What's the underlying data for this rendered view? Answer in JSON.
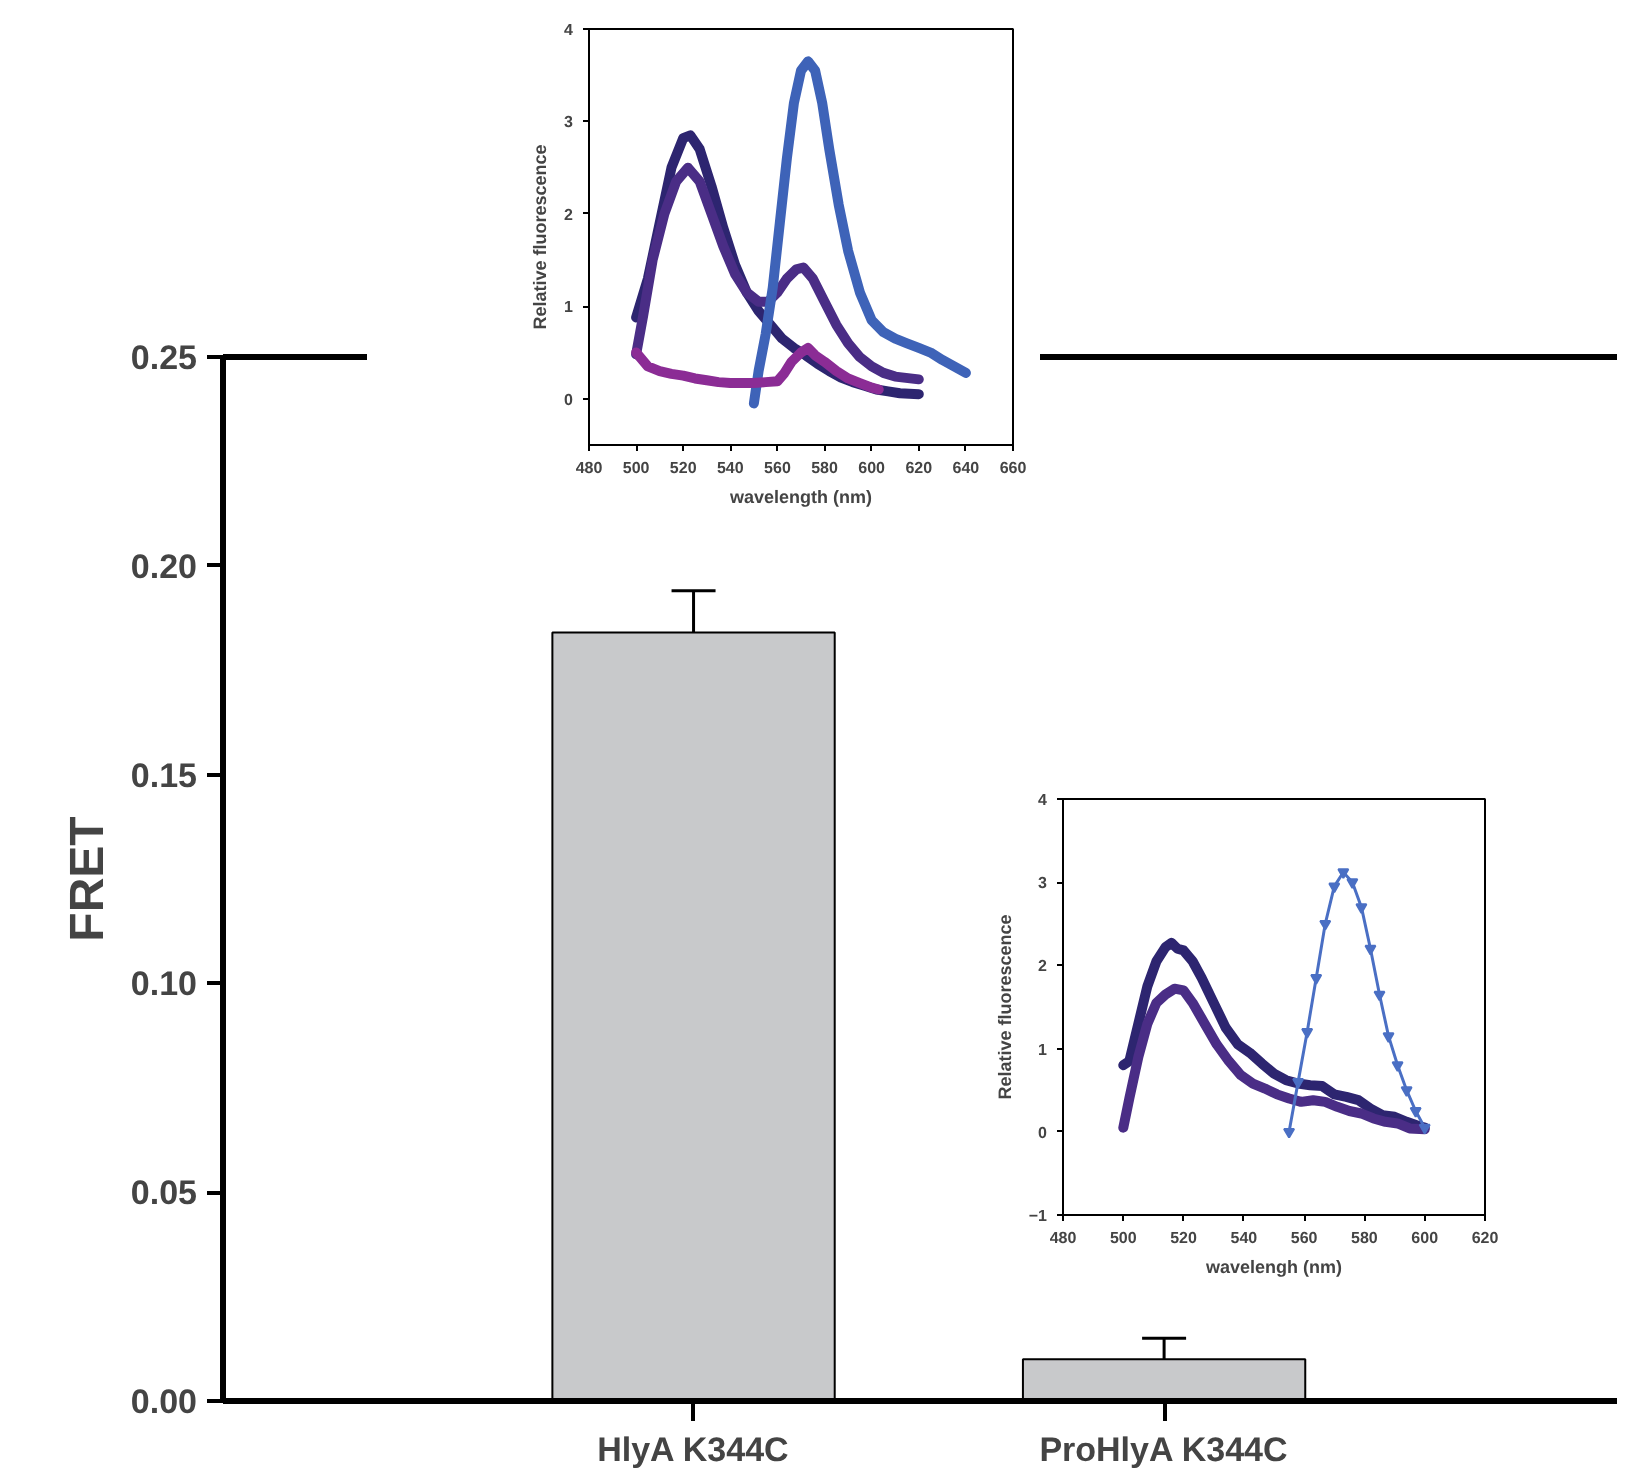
{
  "chart_data": [
    {
      "type": "bar",
      "categories": [
        "HlyA K344C",
        "ProHlyA K344C"
      ],
      "values": [
        0.184,
        0.01
      ],
      "errors": [
        [
          0.184,
          0.194
        ],
        [
          0.01,
          0.015
        ]
      ],
      "color": "#c8c9cb",
      "ylabel": "FRET",
      "ylim": [
        0,
        0.25
      ],
      "yticks": [
        {
          "value": 0,
          "label": "0.00"
        },
        {
          "value": 0.05,
          "label": "0.05"
        },
        {
          "value": 0.1,
          "label": "0.10"
        },
        {
          "value": 0.15,
          "label": "0.15"
        },
        {
          "value": 0.2,
          "label": "0.20"
        },
        {
          "value": 0.25,
          "label": "0.25"
        }
      ],
      "grid": false
    },
    {
      "type": "line",
      "xlabel": "wavelength (nm)",
      "ylabel": "Relative fluorescence",
      "xlim": [
        480,
        660
      ],
      "xticks": [
        480,
        500,
        520,
        540,
        560,
        580,
        600,
        620,
        640,
        660
      ],
      "ylim": [
        -0.5,
        4
      ],
      "yticks": [
        0,
        1,
        2,
        3,
        4
      ],
      "grid": false,
      "series": [
        {
          "color": "#2d2570",
          "x": [
            500,
            505,
            510,
            515,
            520,
            523,
            527,
            532,
            537,
            542,
            547,
            552,
            557,
            562,
            567,
            572,
            577,
            582,
            587,
            592,
            597,
            602,
            607,
            612,
            620
          ],
          "values": [
            0.88,
            1.3,
            1.9,
            2.5,
            2.82,
            2.85,
            2.7,
            2.3,
            1.85,
            1.45,
            1.15,
            0.95,
            0.8,
            0.65,
            0.55,
            0.47,
            0.38,
            0.3,
            0.23,
            0.18,
            0.14,
            0.1,
            0.08,
            0.06,
            0.05
          ]
        },
        {
          "color": "#4a2d86",
          "x": [
            500,
            503,
            507,
            512,
            517,
            522,
            527,
            532,
            537,
            542,
            547,
            552,
            556,
            560,
            564,
            568,
            571,
            575,
            580,
            585,
            590,
            595,
            600,
            605,
            610,
            620
          ],
          "values": [
            0.48,
            0.9,
            1.5,
            2.0,
            2.35,
            2.5,
            2.35,
            2.0,
            1.65,
            1.35,
            1.15,
            1.05,
            1.05,
            1.15,
            1.3,
            1.4,
            1.42,
            1.3,
            1.05,
            0.8,
            0.6,
            0.45,
            0.35,
            0.28,
            0.24,
            0.21
          ]
        },
        {
          "color": "#3e63b8",
          "x": [
            550,
            552,
            555,
            558,
            561,
            564,
            567,
            570,
            573,
            576,
            579,
            582,
            586,
            590,
            595,
            600,
            605,
            610,
            615,
            620,
            625,
            630,
            635,
            640
          ],
          "values": [
            -0.05,
            0.3,
            0.7,
            1.2,
            1.9,
            2.6,
            3.2,
            3.55,
            3.65,
            3.55,
            3.2,
            2.7,
            2.1,
            1.6,
            1.15,
            0.85,
            0.72,
            0.65,
            0.6,
            0.55,
            0.5,
            0.42,
            0.35,
            0.28
          ]
        },
        {
          "color": "#8b2c95",
          "x": [
            500,
            505,
            510,
            515,
            520,
            525,
            530,
            535,
            540,
            545,
            550,
            555,
            560,
            563,
            566,
            570,
            573,
            576,
            580,
            585,
            590,
            595,
            600,
            603
          ],
          "values": [
            0.5,
            0.35,
            0.3,
            0.27,
            0.25,
            0.22,
            0.2,
            0.18,
            0.17,
            0.17,
            0.17,
            0.18,
            0.19,
            0.28,
            0.4,
            0.5,
            0.55,
            0.47,
            0.4,
            0.3,
            0.22,
            0.17,
            0.12,
            0.1
          ]
        }
      ]
    },
    {
      "type": "line",
      "xlabel": "wavelengh (nm)",
      "ylabel": "Relative fluorescence",
      "xlim": [
        480,
        620
      ],
      "xticks": [
        480,
        500,
        520,
        540,
        560,
        580,
        600,
        620
      ],
      "ylim": [
        -1,
        4
      ],
      "yticks": [
        -1,
        0,
        1,
        2,
        3,
        4
      ],
      "grid": false,
      "series": [
        {
          "color": "#2d2570",
          "x": [
            500,
            502,
            505,
            508,
            511,
            514,
            516,
            518,
            520,
            523,
            526,
            530,
            534,
            538,
            542,
            546,
            550,
            554,
            558,
            562,
            566,
            570,
            574,
            578,
            582,
            586,
            590,
            594,
            598,
            600
          ],
          "values": [
            0.8,
            0.85,
            1.3,
            1.75,
            2.05,
            2.22,
            2.27,
            2.2,
            2.18,
            2.05,
            1.85,
            1.55,
            1.25,
            1.05,
            0.95,
            0.82,
            0.7,
            0.62,
            0.58,
            0.56,
            0.55,
            0.45,
            0.42,
            0.38,
            0.28,
            0.2,
            0.18,
            0.12,
            0.07,
            0.05
          ]
        },
        {
          "color": "#4a2d86",
          "x": [
            500,
            502,
            505,
            508,
            511,
            514,
            517,
            520,
            523,
            527,
            531,
            535,
            539,
            543,
            547,
            551,
            555,
            559,
            563,
            567,
            571,
            575,
            579,
            583,
            587,
            591,
            595,
            600
          ],
          "values": [
            0.05,
            0.4,
            0.9,
            1.3,
            1.55,
            1.65,
            1.72,
            1.7,
            1.55,
            1.3,
            1.05,
            0.85,
            0.68,
            0.58,
            0.52,
            0.45,
            0.4,
            0.36,
            0.38,
            0.36,
            0.3,
            0.25,
            0.22,
            0.16,
            0.12,
            0.1,
            0.04,
            0.03
          ]
        },
        {
          "color": "#4a6fc4",
          "marker": "triangle",
          "x": [
            555,
            558,
            561,
            564,
            567,
            570,
            573,
            576,
            579,
            582,
            585,
            588,
            591,
            594,
            597,
            600
          ],
          "values": [
            0,
            0.6,
            1.2,
            1.85,
            2.5,
            2.95,
            3.12,
            3.0,
            2.7,
            2.2,
            1.65,
            1.15,
            0.8,
            0.5,
            0.25,
            0.05
          ]
        }
      ]
    }
  ]
}
